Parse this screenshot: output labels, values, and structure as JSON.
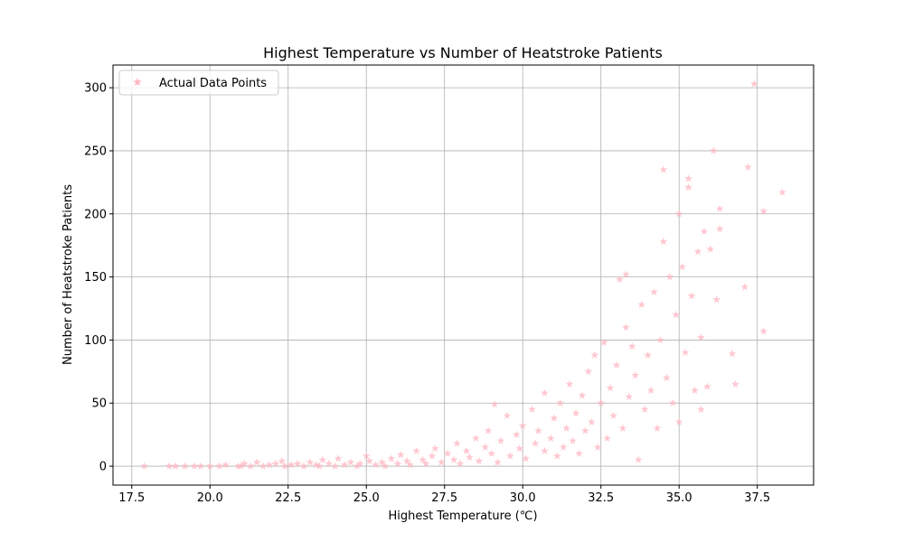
{
  "chart_data": {
    "type": "scatter",
    "title": "Highest Temperature vs Number of Heatstroke Patients",
    "xlabel": "Highest Temperature (℃)",
    "ylabel": "Number of Heatstroke Patients",
    "xlim": [
      16.9,
      39.3
    ],
    "ylim": [
      -15,
      318
    ],
    "xticks": [
      17.5,
      20.0,
      22.5,
      25.0,
      27.5,
      30.0,
      32.5,
      35.0,
      37.5
    ],
    "xtick_labels": [
      "17.5",
      "20.0",
      "22.5",
      "25.0",
      "27.5",
      "30.0",
      "32.5",
      "35.0",
      "37.5"
    ],
    "yticks": [
      0,
      50,
      100,
      150,
      200,
      250,
      300
    ],
    "ytick_labels": [
      "0",
      "50",
      "100",
      "150",
      "200",
      "250",
      "300"
    ],
    "grid": true,
    "legend_position": "upper-left",
    "marker": "star",
    "marker_color": "#ffb6c1",
    "series": [
      {
        "name": "Actual Data Points",
        "points": [
          [
            17.9,
            0
          ],
          [
            18.7,
            0
          ],
          [
            18.9,
            0
          ],
          [
            19.2,
            0
          ],
          [
            19.5,
            0
          ],
          [
            19.7,
            0
          ],
          [
            20.0,
            0
          ],
          [
            20.3,
            0
          ],
          [
            20.5,
            1
          ],
          [
            20.9,
            0
          ],
          [
            21.0,
            0
          ],
          [
            21.1,
            2
          ],
          [
            21.3,
            0
          ],
          [
            21.5,
            3
          ],
          [
            21.7,
            0
          ],
          [
            21.9,
            1
          ],
          [
            22.1,
            2
          ],
          [
            22.3,
            4
          ],
          [
            22.4,
            0
          ],
          [
            22.6,
            1
          ],
          [
            22.8,
            2
          ],
          [
            23.0,
            0
          ],
          [
            23.2,
            3
          ],
          [
            23.4,
            1
          ],
          [
            23.5,
            0
          ],
          [
            23.6,
            5
          ],
          [
            23.8,
            2
          ],
          [
            24.0,
            0
          ],
          [
            24.1,
            6
          ],
          [
            24.3,
            1
          ],
          [
            24.5,
            3
          ],
          [
            24.7,
            0
          ],
          [
            24.8,
            2
          ],
          [
            25.0,
            8
          ],
          [
            25.1,
            4
          ],
          [
            25.3,
            1
          ],
          [
            25.5,
            3
          ],
          [
            25.6,
            0
          ],
          [
            25.8,
            6
          ],
          [
            26.0,
            2
          ],
          [
            26.1,
            9
          ],
          [
            26.3,
            4
          ],
          [
            26.4,
            1
          ],
          [
            26.6,
            12
          ],
          [
            26.8,
            5
          ],
          [
            26.9,
            2
          ],
          [
            27.1,
            8
          ],
          [
            27.2,
            14
          ],
          [
            27.4,
            3
          ],
          [
            27.6,
            10
          ],
          [
            27.8,
            5
          ],
          [
            27.9,
            18
          ],
          [
            28.0,
            2
          ],
          [
            28.2,
            12
          ],
          [
            28.3,
            7
          ],
          [
            28.5,
            22
          ],
          [
            28.6,
            4
          ],
          [
            28.8,
            15
          ],
          [
            28.9,
            28
          ],
          [
            29.0,
            10
          ],
          [
            29.1,
            49
          ],
          [
            29.2,
            3
          ],
          [
            29.3,
            20
          ],
          [
            29.5,
            40
          ],
          [
            29.6,
            8
          ],
          [
            29.8,
            25
          ],
          [
            29.9,
            14
          ],
          [
            30.0,
            32
          ],
          [
            30.1,
            6
          ],
          [
            30.3,
            45
          ],
          [
            30.4,
            18
          ],
          [
            30.5,
            28
          ],
          [
            30.7,
            12
          ],
          [
            30.7,
            58
          ],
          [
            30.9,
            22
          ],
          [
            31.0,
            38
          ],
          [
            31.1,
            8
          ],
          [
            31.2,
            50
          ],
          [
            31.3,
            15
          ],
          [
            31.4,
            30
          ],
          [
            31.5,
            65
          ],
          [
            31.6,
            20
          ],
          [
            31.7,
            42
          ],
          [
            31.8,
            10
          ],
          [
            31.9,
            56
          ],
          [
            32.0,
            28
          ],
          [
            32.1,
            75
          ],
          [
            32.2,
            35
          ],
          [
            32.3,
            88
          ],
          [
            32.4,
            15
          ],
          [
            32.5,
            50
          ],
          [
            32.6,
            98
          ],
          [
            32.7,
            22
          ],
          [
            32.8,
            62
          ],
          [
            32.9,
            40
          ],
          [
            33.0,
            80
          ],
          [
            33.1,
            148
          ],
          [
            33.2,
            30
          ],
          [
            33.3,
            110
          ],
          [
            33.3,
            152
          ],
          [
            33.4,
            55
          ],
          [
            33.5,
            95
          ],
          [
            33.6,
            72
          ],
          [
            33.7,
            5
          ],
          [
            33.8,
            128
          ],
          [
            33.9,
            45
          ],
          [
            34.0,
            88
          ],
          [
            34.1,
            60
          ],
          [
            34.2,
            138
          ],
          [
            34.3,
            30
          ],
          [
            34.4,
            100
          ],
          [
            34.5,
            235
          ],
          [
            34.5,
            178
          ],
          [
            34.6,
            70
          ],
          [
            34.7,
            150
          ],
          [
            34.8,
            50
          ],
          [
            34.9,
            120
          ],
          [
            35.0,
            200
          ],
          [
            35.0,
            35
          ],
          [
            35.1,
            158
          ],
          [
            35.2,
            90
          ],
          [
            35.3,
            221
          ],
          [
            35.3,
            228
          ],
          [
            35.4,
            135
          ],
          [
            35.5,
            60
          ],
          [
            35.6,
            170
          ],
          [
            35.7,
            102
          ],
          [
            35.7,
            45
          ],
          [
            35.8,
            186
          ],
          [
            35.9,
            63
          ],
          [
            36.0,
            172
          ],
          [
            36.1,
            250
          ],
          [
            36.2,
            132
          ],
          [
            36.3,
            204
          ],
          [
            36.3,
            188
          ],
          [
            36.7,
            89
          ],
          [
            36.8,
            65
          ],
          [
            37.1,
            142
          ],
          [
            37.2,
            237
          ],
          [
            37.4,
            303
          ],
          [
            37.7,
            202
          ],
          [
            37.7,
            107
          ],
          [
            38.3,
            217
          ]
        ]
      }
    ]
  }
}
